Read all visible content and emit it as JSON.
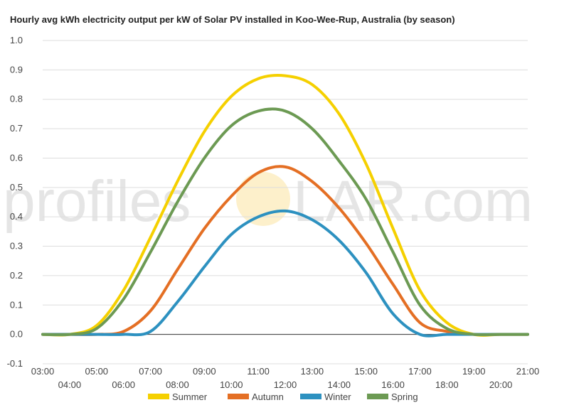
{
  "watermark": {
    "left": "profiles",
    "right": "LAR.com",
    "sun_color": "#fbe3a0"
  },
  "chart_data": {
    "type": "line",
    "title": "Hourly avg kWh electricity output per kW of Solar PV installed in Koo-Wee-Rup, Australia (by season)",
    "xlabel": "",
    "ylabel": "",
    "x": [
      "03:00",
      "04:00",
      "05:00",
      "06:00",
      "07:00",
      "08:00",
      "09:00",
      "10:00",
      "11:00",
      "12:00",
      "13:00",
      "14:00",
      "15:00",
      "16:00",
      "17:00",
      "18:00",
      "19:00",
      "20:00",
      "21:00"
    ],
    "ylim": [
      -0.1,
      1.0
    ],
    "yticks": [
      "-0.1",
      "0.0",
      "0.1",
      "0.2",
      "0.3",
      "0.4",
      "0.5",
      "0.6",
      "0.7",
      "0.8",
      "0.9",
      "1.0"
    ],
    "grid": true,
    "legend_position": "bottom",
    "series": [
      {
        "name": "Summer",
        "color": "#f5d000",
        "values": [
          0.0,
          0.0,
          0.03,
          0.15,
          0.33,
          0.52,
          0.69,
          0.81,
          0.87,
          0.88,
          0.85,
          0.75,
          0.58,
          0.36,
          0.15,
          0.04,
          0.0,
          0.0,
          0.0
        ]
      },
      {
        "name": "Autumn",
        "color": "#e46f24",
        "values": [
          0.0,
          0.0,
          0.0,
          0.01,
          0.08,
          0.22,
          0.36,
          0.47,
          0.55,
          0.57,
          0.52,
          0.43,
          0.31,
          0.17,
          0.04,
          0.01,
          0.0,
          0.0,
          0.0
        ]
      },
      {
        "name": "Winter",
        "color": "#2d91c0",
        "values": [
          0.0,
          0.0,
          0.0,
          0.0,
          0.01,
          0.11,
          0.23,
          0.34,
          0.4,
          0.42,
          0.39,
          0.32,
          0.21,
          0.07,
          0.0,
          0.0,
          0.0,
          0.0,
          0.0
        ]
      },
      {
        "name": "Spring",
        "color": "#6c9a53",
        "values": [
          0.0,
          0.0,
          0.02,
          0.12,
          0.28,
          0.45,
          0.6,
          0.71,
          0.76,
          0.76,
          0.7,
          0.59,
          0.46,
          0.28,
          0.1,
          0.02,
          0.0,
          0.0,
          0.0
        ]
      }
    ]
  }
}
